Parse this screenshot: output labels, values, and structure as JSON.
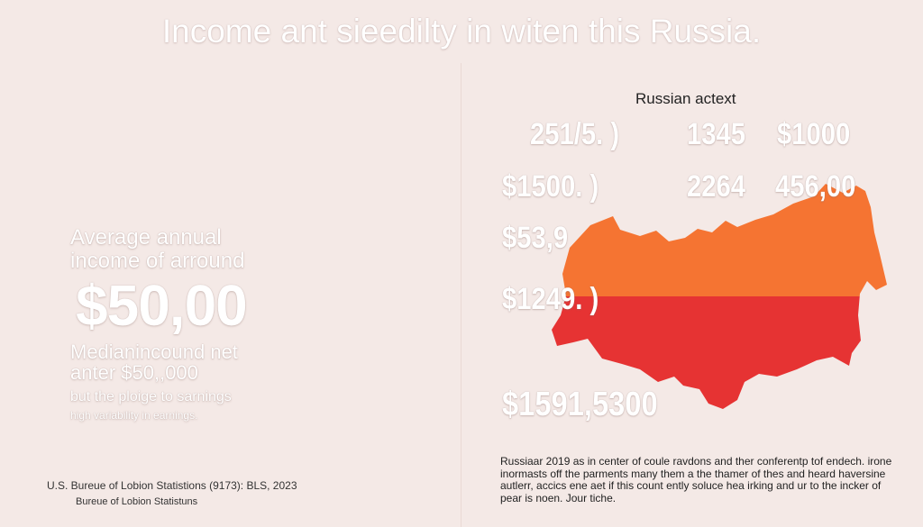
{
  "title": "Income ant sieedilty in witen this Russia.",
  "left_panel": {
    "average_line1": "Average annual",
    "average_line2": "income of arround",
    "big_value": "$50,00",
    "median_line1": "Medianincound net",
    "median_line2": "anter $50,,000",
    "note_line1": "but the ploige to sarnings",
    "note_line2": "high variability in earnings.",
    "source_line1": "U.S. Bureue of Lobion Statistions (9173): BLS, 2023",
    "source_line2": "Bureue of Lobion Statistuns"
  },
  "map_panel": {
    "map_title": "Russian actext",
    "stats": [
      "251/5. )",
      "1345",
      "$1000",
      "$1500. )",
      "2264",
      "456,00",
      "$53,9",
      "$1249. )",
      "$1591,5300"
    ],
    "caption": "Russiaar 2019 as in center of coule ravdons and ther conferentp tof endech. irone inormasts off the parments many them a the thamer of thes and heard haversine autlerr, accics ene aet if this count ently soluce hea irking and ur to the incker of pear is noen. Jour tiche.",
    "colors": {
      "map_top": "#f57432",
      "map_bottom": "#e63333"
    }
  }
}
